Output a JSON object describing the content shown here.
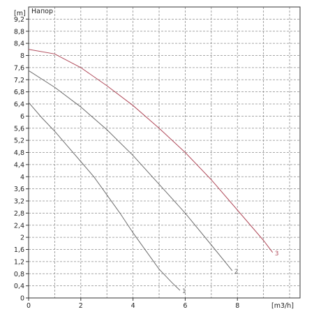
{
  "chart_data": {
    "type": "line",
    "title": "Напор",
    "ylabel": "[m]",
    "xlabel": "[m3/h]",
    "xlim": [
      0,
      10.4
    ],
    "ylim": [
      0,
      9.6
    ],
    "x_ticks": [
      0,
      2,
      4,
      6,
      8
    ],
    "y_ticks": [
      "0",
      "0,4",
      "0,8",
      "1,2",
      "1,6",
      "2",
      "2,4",
      "2,8",
      "3,2",
      "3,6",
      "4",
      "4,4",
      "4,8",
      "5,2",
      "5,6",
      "6",
      "6,4",
      "6,8",
      "7,2",
      "7,6",
      "8",
      "8,4",
      "8,8",
      "9,2"
    ],
    "grid": true,
    "series": [
      {
        "name": "1",
        "color": "#6e6e6e",
        "x": [
          0,
          0.5,
          1,
          1.5,
          2,
          2.5,
          3,
          3.5,
          4,
          4.5,
          5,
          5.5,
          5.8
        ],
        "y": [
          6.45,
          5.95,
          5.5,
          5.0,
          4.5,
          4.0,
          3.4,
          2.8,
          2.15,
          1.55,
          0.95,
          0.5,
          0.25
        ]
      },
      {
        "name": "2",
        "color": "#6e6e6e",
        "x": [
          0,
          1,
          2,
          3,
          4,
          5,
          6,
          7,
          7.8
        ],
        "y": [
          7.5,
          6.95,
          6.3,
          5.55,
          4.7,
          3.75,
          2.8,
          1.75,
          0.9
        ]
      },
      {
        "name": "3",
        "color": "#b04a5a",
        "x": [
          0,
          1,
          2,
          3,
          4,
          5,
          6,
          7,
          8,
          9,
          9.35
        ],
        "y": [
          8.2,
          8.05,
          7.6,
          7.0,
          6.35,
          5.6,
          4.8,
          3.9,
          2.9,
          1.9,
          1.5
        ]
      }
    ]
  }
}
